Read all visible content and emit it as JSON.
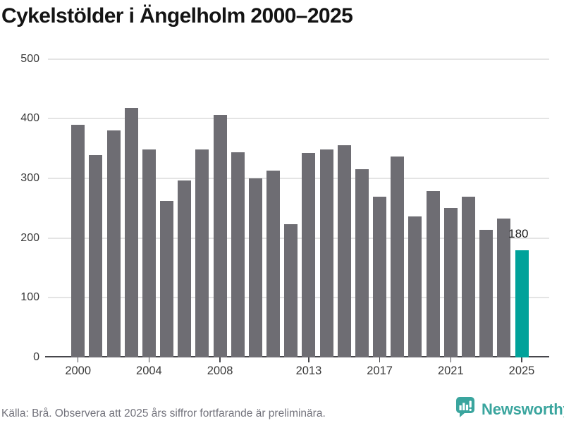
{
  "title": "Cykelstölder i Ängelholm 2000–2025",
  "source_note": "Källa: Brå. Observera att 2025 års siffror fortfarande är preliminära.",
  "branding": {
    "logo_text": "Newsworthy",
    "logo_icon": "newsworthy-speech-bubble-bar-chart-icon",
    "logo_color": "#3aa59e"
  },
  "colors": {
    "bar": "#6e6d73",
    "highlight_bar": "#00a29a",
    "gridline": "#e4e4e4",
    "axis_line": "#46464b",
    "axis_label": "#3a3a3a",
    "title": "#141414",
    "source_text": "#73737c",
    "annotation": "#1c1c1c",
    "background": "#ffffff"
  },
  "chart_data": {
    "type": "bar",
    "title": "Cykelstölder i Ängelholm 2000–2025",
    "x": [
      2000,
      2001,
      2002,
      2003,
      2004,
      2005,
      2006,
      2007,
      2008,
      2009,
      2010,
      2011,
      2012,
      2013,
      2014,
      2015,
      2016,
      2017,
      2018,
      2019,
      2020,
      2021,
      2022,
      2023,
      2024,
      2025
    ],
    "values": [
      390,
      339,
      380,
      418,
      348,
      262,
      296,
      348,
      406,
      343,
      300,
      313,
      223,
      342,
      348,
      355,
      315,
      269,
      336,
      236,
      279,
      250,
      269,
      214,
      233,
      180
    ],
    "highlight_x": 2025,
    "annotation": {
      "x": 2025,
      "label": "180"
    },
    "ylim": [
      0,
      500
    ],
    "yticks": [
      0,
      100,
      200,
      300,
      400,
      500
    ],
    "xticks": [
      2000,
      2004,
      2008,
      2013,
      2017,
      2021,
      2025
    ],
    "grid": "horizontal",
    "legend": "none"
  }
}
